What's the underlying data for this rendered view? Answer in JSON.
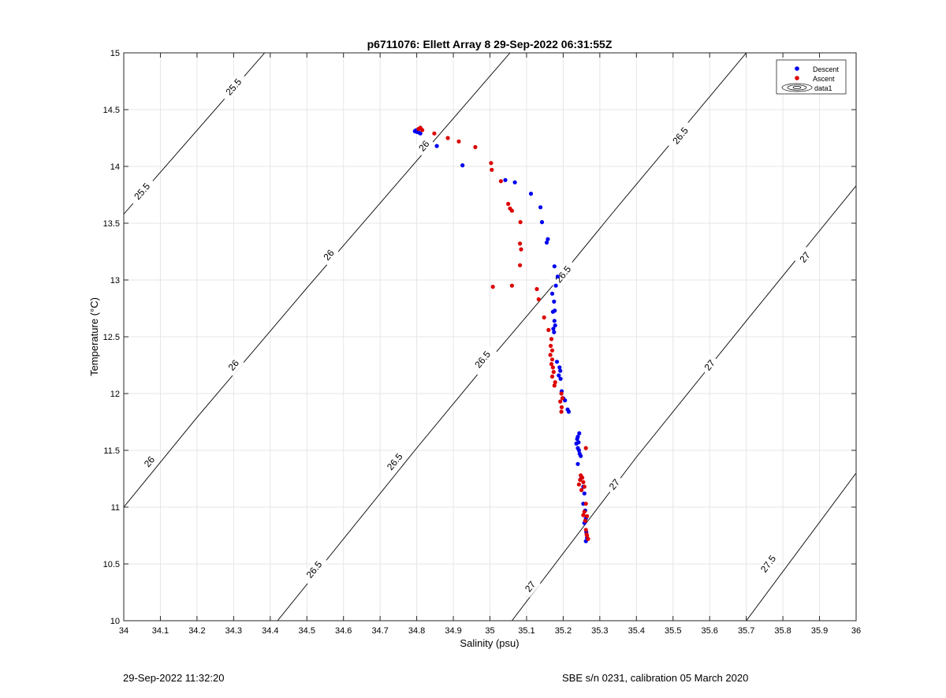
{
  "chart_data": {
    "type": "scatter",
    "title": "p6711076: Ellett Array 8 29-Sep-2022 06:31:55Z",
    "xlabel": "Salinity (psu)",
    "ylabel": "Temperature (°C)",
    "xlim": [
      34,
      36
    ],
    "ylim": [
      10,
      15
    ],
    "xticks": [
      34,
      34.1,
      34.2,
      34.3,
      34.4,
      34.5,
      34.6,
      34.7,
      34.8,
      34.9,
      35,
      35.1,
      35.2,
      35.3,
      35.4,
      35.5,
      35.6,
      35.7,
      35.8,
      35.9,
      36
    ],
    "xtick_labels": [
      "34",
      "34.1",
      "34.2",
      "34.3",
      "34.4",
      "34.5",
      "34.6",
      "34.7",
      "34.8",
      "34.9",
      "35",
      "35.1",
      "35.2",
      "35.3",
      "35.4",
      "35.5",
      "35.6",
      "35.7",
      "35.8",
      "35.9",
      "36"
    ],
    "yticks": [
      10,
      10.5,
      11,
      11.5,
      12,
      12.5,
      13,
      13.5,
      14,
      14.5,
      15
    ],
    "ytick_labels": [
      "10",
      "10.5",
      "11",
      "11.5",
      "12",
      "12.5",
      "13",
      "13.5",
      "14",
      "14.5",
      "15"
    ],
    "grid": true,
    "legend_position": "top-right",
    "legend": [
      "Descent",
      "Ascent",
      "data1"
    ],
    "series": [
      {
        "name": "Descent",
        "color": "#0000ee",
        "points": [
          [
            34.795,
            14.31
          ],
          [
            34.8,
            14.305
          ],
          [
            34.805,
            14.3
          ],
          [
            34.81,
            14.29
          ],
          [
            34.798,
            14.318
          ],
          [
            34.803,
            14.312
          ],
          [
            34.855,
            14.18
          ],
          [
            34.925,
            14.01
          ],
          [
            35.042,
            13.88
          ],
          [
            35.068,
            13.86
          ],
          [
            35.112,
            13.76
          ],
          [
            35.138,
            13.64
          ],
          [
            35.142,
            13.51
          ],
          [
            35.158,
            13.36
          ],
          [
            35.155,
            13.33
          ],
          [
            35.176,
            13.12
          ],
          [
            35.185,
            13.03
          ],
          [
            35.18,
            12.95
          ],
          [
            35.17,
            12.88
          ],
          [
            35.175,
            12.81
          ],
          [
            35.177,
            12.73
          ],
          [
            35.172,
            12.72
          ],
          [
            35.176,
            12.64
          ],
          [
            35.178,
            12.6
          ],
          [
            35.173,
            12.57
          ],
          [
            35.175,
            12.54
          ],
          [
            35.183,
            12.28
          ],
          [
            35.19,
            12.23
          ],
          [
            35.192,
            12.2
          ],
          [
            35.188,
            12.16
          ],
          [
            35.193,
            12.13
          ],
          [
            35.196,
            12.02
          ],
          [
            35.2,
            11.96
          ],
          [
            35.205,
            11.94
          ],
          [
            35.212,
            11.86
          ],
          [
            35.215,
            11.84
          ],
          [
            35.24,
            11.62
          ],
          [
            35.244,
            11.65
          ],
          [
            35.238,
            11.6
          ],
          [
            35.236,
            11.56
          ],
          [
            35.242,
            11.57
          ],
          [
            35.24,
            11.52
          ],
          [
            35.243,
            11.5
          ],
          [
            35.245,
            11.47
          ],
          [
            35.248,
            11.45
          ],
          [
            35.24,
            11.38
          ],
          [
            35.25,
            11.26
          ],
          [
            35.255,
            11.18
          ],
          [
            35.258,
            11.12
          ],
          [
            35.255,
            11.03
          ],
          [
            35.26,
            10.97
          ],
          [
            35.262,
            10.9
          ],
          [
            35.258,
            10.86
          ],
          [
            35.263,
            10.78
          ],
          [
            35.265,
            10.73
          ],
          [
            35.262,
            10.7
          ]
        ]
      },
      {
        "name": "Ascent",
        "color": "#dd0000",
        "points": [
          [
            34.805,
            14.33
          ],
          [
            34.81,
            14.34
          ],
          [
            34.815,
            14.32
          ],
          [
            34.848,
            14.29
          ],
          [
            34.885,
            14.25
          ],
          [
            34.915,
            14.22
          ],
          [
            34.96,
            14.17
          ],
          [
            35.003,
            14.03
          ],
          [
            35.005,
            13.97
          ],
          [
            35.03,
            13.87
          ],
          [
            35.05,
            13.67
          ],
          [
            35.055,
            13.63
          ],
          [
            35.06,
            13.61
          ],
          [
            35.083,
            13.51
          ],
          [
            35.082,
            13.32
          ],
          [
            35.085,
            13.27
          ],
          [
            35.082,
            13.13
          ],
          [
            35.06,
            12.95
          ],
          [
            35.008,
            12.94
          ],
          [
            35.128,
            12.92
          ],
          [
            35.133,
            12.83
          ],
          [
            35.148,
            12.67
          ],
          [
            35.16,
            12.56
          ],
          [
            35.168,
            12.48
          ],
          [
            35.166,
            12.42
          ],
          [
            35.17,
            12.38
          ],
          [
            35.165,
            12.34
          ],
          [
            35.17,
            12.3
          ],
          [
            35.168,
            12.26
          ],
          [
            35.172,
            12.23
          ],
          [
            35.174,
            12.19
          ],
          [
            35.17,
            12.15
          ],
          [
            35.178,
            12.1
          ],
          [
            35.176,
            12.07
          ],
          [
            35.195,
            12.0
          ],
          [
            35.198,
            11.96
          ],
          [
            35.192,
            11.93
          ],
          [
            35.196,
            11.88
          ],
          [
            35.195,
            11.84
          ],
          [
            35.262,
            11.52
          ],
          [
            35.248,
            11.28
          ],
          [
            35.252,
            11.26
          ],
          [
            35.246,
            11.24
          ],
          [
            35.255,
            11.22
          ],
          [
            35.258,
            11.18
          ],
          [
            35.243,
            11.2
          ],
          [
            35.25,
            11.15
          ],
          [
            35.262,
            11.03
          ],
          [
            35.258,
            10.96
          ],
          [
            35.255,
            10.93
          ],
          [
            35.265,
            10.92
          ],
          [
            35.26,
            10.88
          ],
          [
            35.262,
            10.8
          ],
          [
            35.265,
            10.75
          ],
          [
            35.268,
            10.72
          ],
          [
            35.264,
            10.76
          ]
        ]
      }
    ],
    "isopycnals": [
      {
        "value": 25.5,
        "label": "25.5",
        "points": [
          [
            34.0,
            13.58
          ],
          [
            34.385,
            15.0
          ]
        ],
        "label_positions": [
          [
            34.3,
            14.7
          ],
          [
            34.05,
            13.78
          ]
        ]
      },
      {
        "value": 26,
        "label": "26",
        "points": [
          [
            34.0,
            11.0
          ],
          [
            34.2,
            11.79
          ],
          [
            34.5,
            12.93
          ],
          [
            34.8,
            14.05
          ],
          [
            35.055,
            15.0
          ]
        ],
        "label_positions": [
          [
            34.82,
            14.18
          ],
          [
            34.56,
            13.22
          ],
          [
            34.3,
            12.25
          ],
          [
            34.07,
            11.4
          ]
        ]
      },
      {
        "value": 26.5,
        "label": "26.5",
        "points": [
          [
            34.42,
            10.0
          ],
          [
            34.8,
            11.52
          ],
          [
            35.0,
            12.3
          ],
          [
            35.2,
            13.06
          ],
          [
            35.35,
            13.65
          ],
          [
            35.7,
            15.0
          ]
        ],
        "label_positions": [
          [
            35.52,
            14.27
          ],
          [
            35.2,
            13.05
          ],
          [
            34.98,
            12.3
          ],
          [
            34.74,
            11.4
          ],
          [
            34.52,
            10.45
          ]
        ]
      },
      {
        "value": 27,
        "label": "27",
        "points": [
          [
            35.06,
            10.0
          ],
          [
            35.4,
            11.44
          ],
          [
            35.7,
            12.64
          ],
          [
            36.0,
            13.83
          ]
        ],
        "label_positions": [
          [
            35.86,
            13.2
          ],
          [
            35.6,
            12.25
          ],
          [
            35.34,
            11.2
          ],
          [
            35.11,
            10.3
          ]
        ]
      },
      {
        "value": 27.5,
        "label": "27.5",
        "points": [
          [
            35.7,
            10.0
          ],
          [
            36.0,
            11.3
          ]
        ],
        "label_positions": [
          [
            35.76,
            10.5
          ]
        ]
      }
    ]
  },
  "footer": {
    "left": "29-Sep-2022 11:32:20",
    "right": "SBE s/n 0231, calibration 05 March 2020"
  }
}
